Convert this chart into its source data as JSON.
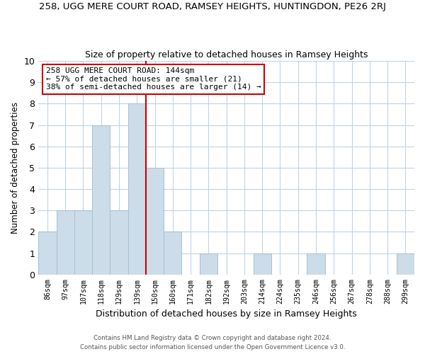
{
  "title": "258, UGG MERE COURT ROAD, RAMSEY HEIGHTS, HUNTINGDON, PE26 2RJ",
  "subtitle": "Size of property relative to detached houses in Ramsey Heights",
  "xlabel": "Distribution of detached houses by size in Ramsey Heights",
  "ylabel": "Number of detached properties",
  "bar_labels": [
    "86sqm",
    "97sqm",
    "107sqm",
    "118sqm",
    "129sqm",
    "139sqm",
    "150sqm",
    "160sqm",
    "171sqm",
    "182sqm",
    "192sqm",
    "203sqm",
    "214sqm",
    "224sqm",
    "235sqm",
    "246sqm",
    "256sqm",
    "267sqm",
    "278sqm",
    "288sqm",
    "299sqm"
  ],
  "bar_values": [
    2,
    3,
    3,
    7,
    3,
    8,
    5,
    2,
    0,
    1,
    0,
    0,
    1,
    0,
    0,
    1,
    0,
    0,
    0,
    0,
    1
  ],
  "bar_color": "#ccdce8",
  "bar_edge_color": "#a8c0d4",
  "vline_index": 6,
  "vline_color": "#cc0000",
  "ylim": [
    0,
    10
  ],
  "yticks": [
    0,
    1,
    2,
    3,
    4,
    5,
    6,
    7,
    8,
    9,
    10
  ],
  "annotation_text": "258 UGG MERE COURT ROAD: 144sqm\n← 57% of detached houses are smaller (21)\n38% of semi-detached houses are larger (14) →",
  "annotation_box_color": "#ffffff",
  "annotation_box_edge": "#cc0000",
  "footer_line1": "Contains HM Land Registry data © Crown copyright and database right 2024.",
  "footer_line2": "Contains public sector information licensed under the Open Government Licence v3.0.",
  "background_color": "#ffffff",
  "grid_color": "#c0d4e4"
}
